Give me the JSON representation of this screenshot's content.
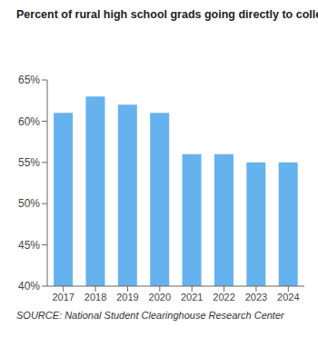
{
  "chart_data": {
    "type": "bar",
    "title": "Percent of rural high school grads going directly to college",
    "source": "SOURCE: National Student Clearinghouse Research Center",
    "categories": [
      "2017",
      "2018",
      "2019",
      "2020",
      "2021",
      "2022",
      "2023",
      "2024"
    ],
    "values": [
      61,
      63,
      62,
      61,
      56,
      56,
      55,
      55
    ],
    "color": "#66b2ee",
    "ylim": [
      40,
      65
    ],
    "yticks": [
      {
        "value": 40,
        "label": "40%"
      },
      {
        "value": 45,
        "label": "45%"
      },
      {
        "value": 50,
        "label": "50%"
      },
      {
        "value": 55,
        "label": "55%"
      },
      {
        "value": 60,
        "label": "60%"
      },
      {
        "value": 65,
        "label": "65%"
      }
    ],
    "grid": false
  }
}
